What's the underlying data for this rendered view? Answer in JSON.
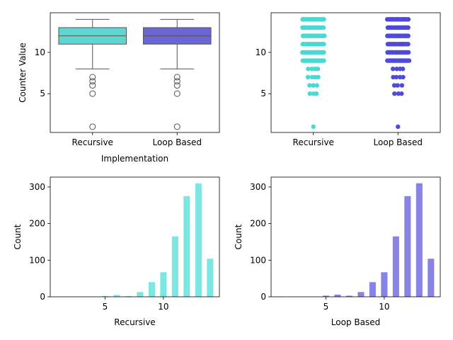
{
  "chart_data": [
    {
      "type": "box",
      "xlabel": "Implementation",
      "ylabel": "Counter Value",
      "categories": [
        "Recursive",
        "Loop Based"
      ],
      "ylim": [
        0.3,
        14.8
      ],
      "yticks": [
        5,
        10
      ],
      "colors": [
        "#5ed6d2",
        "#6a66d6"
      ],
      "boxes": [
        {
          "name": "Recursive",
          "whisker_low": 8,
          "q1": 11,
          "median": 12,
          "q3": 13,
          "whisker_high": 14,
          "outliers": [
            7,
            6.5,
            6,
            5,
            1
          ]
        },
        {
          "name": "Loop Based",
          "whisker_low": 8,
          "q1": 11,
          "median": 12,
          "q3": 13,
          "whisker_high": 14,
          "outliers": [
            7,
            6.5,
            6,
            5,
            1
          ]
        }
      ]
    },
    {
      "type": "strip",
      "xlabel": "",
      "ylabel": "",
      "categories": [
        "Recursive",
        "Loop Based"
      ],
      "ylim": [
        0.3,
        14.8
      ],
      "yticks": [
        5,
        10
      ],
      "colors": [
        "#49d9d3",
        "#4f4ad9"
      ],
      "values": [
        1,
        5,
        6,
        7,
        8,
        9,
        10,
        11,
        12,
        13,
        14
      ]
    },
    {
      "type": "histogram",
      "xlabel": "Recursive",
      "ylabel": "Count",
      "color": "#7de5e2",
      "xlim": [
        0.3,
        14.8
      ],
      "ylim": [
        0,
        327
      ],
      "xticks": [
        5,
        10
      ],
      "yticks": [
        0,
        100,
        200,
        300
      ],
      "x": [
        1,
        5,
        6,
        7,
        8,
        9,
        10,
        11,
        12,
        13,
        14
      ],
      "values": [
        1,
        2,
        5,
        2,
        13,
        40,
        67,
        165,
        275,
        310,
        104
      ]
    },
    {
      "type": "histogram",
      "xlabel": "Loop Based",
      "ylabel": "Count",
      "color": "#8784e3",
      "xlim": [
        0.3,
        14.8
      ],
      "ylim": [
        0,
        327
      ],
      "xticks": [
        5,
        10
      ],
      "yticks": [
        0,
        100,
        200,
        300
      ],
      "x": [
        1,
        5,
        6,
        7,
        8,
        9,
        10,
        11,
        12,
        13,
        14
      ],
      "values": [
        1,
        3,
        6,
        3,
        13,
        40,
        67,
        165,
        275,
        310,
        104
      ]
    }
  ]
}
